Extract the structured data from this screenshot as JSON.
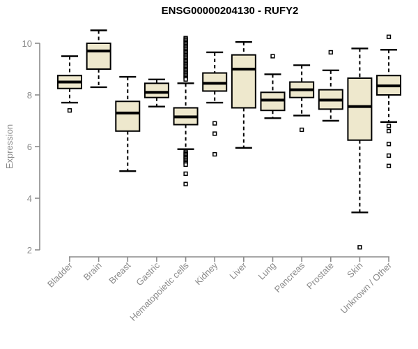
{
  "title": "ENSG00000204130 - RUFY2",
  "chart_data": {
    "type": "boxplot",
    "title": "ENSG00000204130 - RUFY2",
    "xlabel": "",
    "ylabel": "Expression",
    "ylim": [
      2,
      10.7
    ],
    "yticks": [
      2,
      4,
      6,
      8,
      10
    ],
    "grid": false,
    "legend": null,
    "colors": {
      "box_fill": "#EEE8CD",
      "box_stroke": "#000000",
      "median": "#000000",
      "axis": "#8a8a8a",
      "tick_text": "#8a8a8a",
      "title_text": "#000000",
      "background": "#ffffff"
    },
    "categories": [
      "Bladder",
      "Brain",
      "Breast",
      "Gastric",
      "Hematopoietic cells",
      "Kidney",
      "Liver",
      "Lung",
      "Pancreas",
      "Prostate",
      "Skin",
      "Unknown / Other"
    ],
    "series": [
      {
        "name": "Bladder",
        "whisker_low": 7.7,
        "q1": 8.25,
        "median": 8.5,
        "q3": 8.75,
        "whisker_high": 9.5,
        "outliers": [
          7.4
        ]
      },
      {
        "name": "Brain",
        "whisker_low": 8.3,
        "q1": 9.0,
        "median": 9.7,
        "q3": 10.0,
        "whisker_high": 10.5,
        "outliers": []
      },
      {
        "name": "Breast",
        "whisker_low": 5.05,
        "q1": 6.6,
        "median": 7.3,
        "q3": 7.75,
        "whisker_high": 8.7,
        "outliers": []
      },
      {
        "name": "Gastric",
        "whisker_low": 7.55,
        "q1": 7.9,
        "median": 8.1,
        "q3": 8.45,
        "whisker_high": 8.6,
        "outliers": []
      },
      {
        "name": "Hematopoietic cells",
        "whisker_low": 5.9,
        "q1": 6.85,
        "median": 7.15,
        "q3": 7.5,
        "whisker_high": 8.45,
        "outliers": [
          10.2,
          10.15,
          10.1,
          10.05,
          10.0,
          9.95,
          9.9,
          9.85,
          9.8,
          9.75,
          9.7,
          9.65,
          9.6,
          9.55,
          9.5,
          9.45,
          9.4,
          9.35,
          9.3,
          9.25,
          9.2,
          9.15,
          9.1,
          9.05,
          9.0,
          8.95,
          8.9,
          8.85,
          8.8,
          8.75,
          8.7,
          8.65,
          8.6,
          5.8,
          5.75,
          5.7,
          5.65,
          5.6,
          5.55,
          5.5,
          5.45,
          5.4,
          5.35,
          5.3,
          4.95,
          4.55
        ]
      },
      {
        "name": "Kidney",
        "whisker_low": 7.7,
        "q1": 8.15,
        "median": 8.45,
        "q3": 8.85,
        "whisker_high": 9.65,
        "outliers": [
          6.9,
          6.5,
          5.7
        ]
      },
      {
        "name": "Liver",
        "whisker_low": 5.95,
        "q1": 7.5,
        "median": 9.0,
        "q3": 9.55,
        "whisker_high": 10.05,
        "outliers": []
      },
      {
        "name": "Lung",
        "whisker_low": 7.1,
        "q1": 7.4,
        "median": 7.8,
        "q3": 8.1,
        "whisker_high": 8.8,
        "outliers": [
          9.5
        ]
      },
      {
        "name": "Pancreas",
        "whisker_low": 7.2,
        "q1": 7.9,
        "median": 8.2,
        "q3": 8.5,
        "whisker_high": 9.15,
        "outliers": [
          6.65
        ]
      },
      {
        "name": "Prostate",
        "whisker_low": 7.0,
        "q1": 7.45,
        "median": 7.8,
        "q3": 8.2,
        "whisker_high": 8.95,
        "outliers": [
          9.65
        ]
      },
      {
        "name": "Skin",
        "whisker_low": 3.45,
        "q1": 6.25,
        "median": 7.55,
        "q3": 8.65,
        "whisker_high": 9.8,
        "outliers": [
          2.1
        ]
      },
      {
        "name": "Unknown / Other",
        "whisker_low": 6.95,
        "q1": 8.0,
        "median": 8.35,
        "q3": 8.75,
        "whisker_high": 9.75,
        "outliers": [
          10.25,
          6.8,
          6.6,
          6.1,
          5.65,
          5.25
        ]
      }
    ]
  }
}
